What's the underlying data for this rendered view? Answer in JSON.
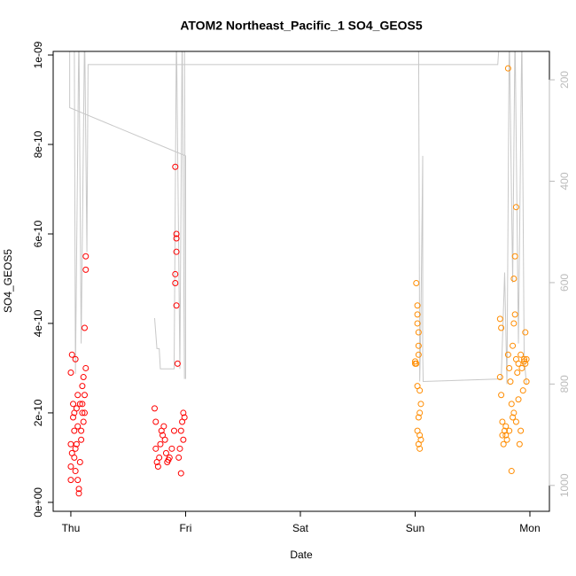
{
  "chart_data": {
    "type": "scatter",
    "title": "ATOM2 Northeast_Pacific_1 SO4_GEOS5",
    "x_label": "Date",
    "y_label": "SO4_GEOS5",
    "xlim": [
      -0.154,
      4.17
    ],
    "xticks": [
      {
        "value": 0,
        "label": "Thu"
      },
      {
        "value": 1,
        "label": "Fri"
      },
      {
        "value": 2,
        "label": "Sat"
      },
      {
        "value": 3,
        "label": "Sun"
      },
      {
        "value": 4,
        "label": "Mon"
      }
    ],
    "ylim": [
      -2e-11,
      1.008e-09
    ],
    "yticks": [
      {
        "value": 0,
        "label": "0e+00"
      },
      {
        "value": 2e-10,
        "label": "2e-10"
      },
      {
        "value": 4e-10,
        "label": "4e-10"
      },
      {
        "value": 6e-10,
        "label": "6e-10"
      },
      {
        "value": 8e-10,
        "label": "8e-10"
      },
      {
        "value": 1e-09,
        "label": "1e-09"
      }
    ],
    "y2lim": [
      1051,
      144
    ],
    "y2ticks": [
      200,
      400,
      600,
      800,
      1000
    ],
    "y2_color": "#bbbbbb",
    "series": [
      {
        "type": "line",
        "axis": "y2",
        "color": "#c8c8c8",
        "x": [
          -0.01,
          -0.01,
          1.0,
          1.0,
          0.99,
          null,
          0.03,
          0.04,
          0.07,
          0.09,
          0.12,
          0.14,
          0.15,
          3.72,
          3.74,
          null,
          0.73,
          0.75,
          0.77,
          0.78,
          0.9,
          0.92,
          0.95,
          0.97,
          0.99,
          null,
          3.03,
          3.04,
          3.05,
          3.066,
          3.066,
          3.07,
          3.75,
          3.78,
          3.8,
          3.82,
          3.85,
          3.87,
          3.9,
          3.93,
          3.95,
          3.97
        ],
        "values": [
          100,
          255,
          350,
          790,
          100,
          null,
          100,
          780,
          100,
          720,
          100,
          540,
          170,
          170,
          100,
          null,
          670,
          730,
          730,
          770,
          770,
          100,
          770,
          100,
          790,
          null,
          100,
          795,
          680,
          350,
          740,
          795,
          790,
          580,
          800,
          100,
          600,
          100,
          720,
          100,
          750,
          800
        ]
      },
      {
        "color": "#ff0000",
        "x": [
          0.0,
          0.01,
          0.0,
          0.0,
          0.0,
          0.01,
          0.02,
          0.02,
          0.03,
          0.03,
          0.04,
          0.04,
          0.05,
          0.05,
          0.06,
          0.06,
          0.07,
          0.07,
          0.08,
          0.08,
          0.09,
          0.1,
          0.1,
          0.11,
          0.11,
          0.12,
          0.12,
          0.13,
          0.13,
          0.13,
          0.12,
          0.06,
          0.04,
          0.03,
          0.09,
          0.1,
          0.73,
          0.74,
          0.74,
          0.75,
          0.76,
          0.77,
          0.78,
          0.8,
          0.81,
          0.82,
          0.83,
          0.84,
          0.86,
          0.88,
          0.9,
          0.91,
          0.92,
          0.92,
          0.92,
          0.91,
          0.91,
          0.92,
          0.93,
          0.94,
          0.95,
          0.96,
          0.97,
          0.98,
          0.98,
          0.99,
          0.96,
          0.79,
          0.85
        ],
        "values": [
          2.9e-10,
          3.3e-10,
          1.3e-10,
          8e-11,
          5e-11,
          1.1e-10,
          2.2e-10,
          1.9e-10,
          1.6e-10,
          1e-10,
          3.2e-10,
          7e-11,
          2.1e-10,
          1.3e-10,
          5e-11,
          1.7e-10,
          2e-11,
          3e-11,
          9e-11,
          2.2e-10,
          1.6e-10,
          2.6e-10,
          2e-10,
          2.8e-10,
          1.8e-10,
          2.4e-10,
          3.9e-10,
          5.2e-10,
          5.5e-10,
          3e-10,
          2e-10,
          2.4e-10,
          1.2e-10,
          2e-10,
          1.4e-10,
          2.2e-10,
          2.1e-10,
          1.8e-10,
          1.2e-10,
          9e-11,
          8e-11,
          1e-10,
          1.3e-10,
          1.5e-10,
          1.7e-10,
          1.4e-10,
          1.1e-10,
          9e-11,
          1e-10,
          1.2e-10,
          1.6e-10,
          7.5e-10,
          6e-10,
          5.9e-10,
          5.6e-10,
          5.1e-10,
          4.9e-10,
          4.4e-10,
          3.1e-10,
          1e-10,
          1.2e-10,
          1.6e-10,
          1.8e-10,
          2e-10,
          1.4e-10,
          1.9e-10,
          6.5e-11,
          1.6e-10,
          9.5e-11
        ]
      },
      {
        "color": "#ff8c00",
        "x": [
          3.0,
          3.0,
          3.01,
          3.02,
          3.02,
          3.02,
          3.03,
          3.03,
          3.03,
          3.02,
          3.04,
          3.05,
          3.03,
          3.04,
          3.02,
          3.03,
          3.04,
          3.05,
          3.04,
          3.01,
          3.74,
          3.75,
          3.74,
          3.75,
          3.76,
          3.76,
          3.77,
          3.78,
          3.79,
          3.8,
          3.81,
          3.81,
          3.82,
          3.83,
          3.84,
          3.85,
          3.88,
          3.87,
          3.86,
          3.87,
          3.86,
          3.85,
          3.88,
          3.89,
          3.9,
          3.92,
          3.93,
          3.95,
          3.96,
          3.96,
          3.97,
          3.94,
          3.9,
          3.88,
          3.91,
          3.79,
          3.82,
          3.84,
          3.92,
          3.86,
          3.95,
          3.97
        ],
        "values": [
          3.1e-10,
          3.15e-10,
          4.9e-10,
          4.4e-10,
          4.2e-10,
          4e-10,
          3.8e-10,
          3.5e-10,
          3.3e-10,
          2.6e-10,
          2.5e-10,
          2.2e-10,
          1.9e-10,
          2e-10,
          1.6e-10,
          1.3e-10,
          1.5e-10,
          1.4e-10,
          1.2e-10,
          3.1e-10,
          4.1e-10,
          3.9e-10,
          2.8e-10,
          2.4e-10,
          1.8e-10,
          1.5e-10,
          1.3e-10,
          1.6e-10,
          1.7e-10,
          1.4e-10,
          9.7e-10,
          3.3e-10,
          3e-10,
          2.7e-10,
          2.2e-10,
          1.9e-10,
          6.6e-10,
          5.5e-10,
          5e-10,
          4.2e-10,
          4e-10,
          3.5e-10,
          3.2e-10,
          2.9e-10,
          3.1e-10,
          3.3e-10,
          3e-10,
          3.2e-10,
          3.8e-10,
          3.1e-10,
          2.7e-10,
          2.5e-10,
          2.3e-10,
          1.8e-10,
          1.3e-10,
          1.5e-10,
          1.6e-10,
          7e-11,
          1.6e-10,
          2e-10,
          3.15e-10,
          3.2e-10
        ]
      }
    ]
  }
}
